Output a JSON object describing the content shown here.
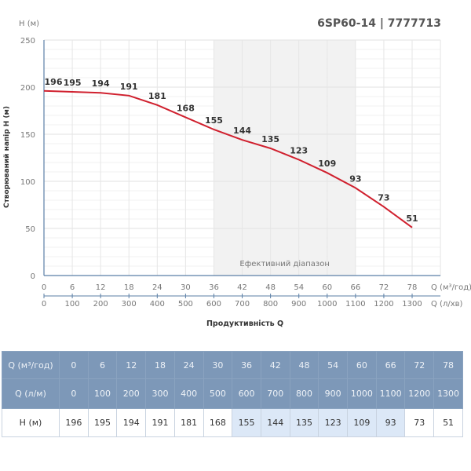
{
  "chart_data": {
    "type": "line",
    "title": "6SP60-14 | 7777713",
    "ylabel": "Створюваний напір H (м)",
    "yunit": "H (м)",
    "xlabel": "Продуктивність Q",
    "x_unit_primary": "Q (м³/год)",
    "x_unit_secondary": "Q (л/хв)",
    "ylim": [
      0,
      250
    ],
    "yticks": [
      0,
      50,
      100,
      150,
      200,
      250
    ],
    "x": [
      0,
      6,
      12,
      18,
      24,
      30,
      36,
      42,
      48,
      54,
      60,
      66,
      72,
      78
    ],
    "x_secondary": [
      0,
      100,
      200,
      300,
      400,
      500,
      600,
      700,
      800,
      900,
      1000,
      1100,
      1200,
      1300
    ],
    "series": [
      {
        "values": [
          196,
          195,
          194,
          191,
          181,
          168,
          155,
          144,
          135,
          123,
          109,
          93,
          73,
          51
        ]
      }
    ],
    "efficient_range": {
      "label": "Ефективний діапазон",
      "from": 36,
      "to": 66
    },
    "line_color": "#d0202e",
    "grid": true
  },
  "table": {
    "row1_label": "Q (м³/год)",
    "row2_label": "Q (л/м)",
    "row3_label": "H (м)"
  }
}
